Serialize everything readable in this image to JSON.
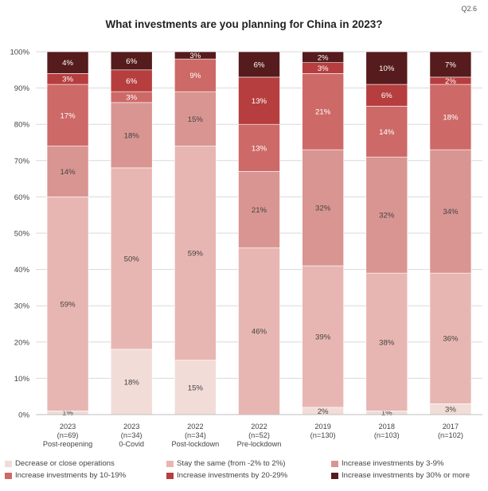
{
  "question_code": "Q2.6",
  "chart_data": {
    "type": "bar",
    "stacked": true,
    "title": "What investments are you planning for China in 2023?",
    "ylim": [
      0,
      100
    ],
    "yticks": [
      "0%",
      "10%",
      "20%",
      "30%",
      "40%",
      "50%",
      "60%",
      "70%",
      "80%",
      "90%",
      "100%"
    ],
    "grid": true,
    "legend_position": "bottom",
    "categories": [
      {
        "line1": "2023",
        "line2": "(n=69)",
        "line3": "Post-reopening"
      },
      {
        "line1": "2023",
        "line2": "(n=34)",
        "line3": "0-Covid"
      },
      {
        "line1": "2022",
        "line2": "(n=34)",
        "line3": "Post-lockdown"
      },
      {
        "line1": "2022",
        "line2": "(n=52)",
        "line3": "Pre-lockdown"
      },
      {
        "line1": "2019",
        "line2": "(n=130)",
        "line3": ""
      },
      {
        "line1": "2018",
        "line2": "(n=103)",
        "line3": ""
      },
      {
        "line1": "2017",
        "line2": "(n=102)",
        "line3": ""
      }
    ],
    "series": [
      {
        "name": "Decrease or close operations",
        "color": "#f2dcd8",
        "values": [
          1,
          18,
          15,
          0,
          2,
          1,
          3
        ],
        "labels": [
          "1%",
          "18%",
          "15%",
          "",
          "2%",
          "1%",
          "3%"
        ]
      },
      {
        "name": "Stay the same (from -2% to 2%)",
        "color": "#e8b6b2",
        "values": [
          59,
          50,
          59,
          46,
          39,
          38,
          36
        ],
        "labels": [
          "59%",
          "50%",
          "59%",
          "46%",
          "39%",
          "38%",
          "36%"
        ]
      },
      {
        "name": "Increase investments by 3-9%",
        "color": "#d99592",
        "values": [
          14,
          18,
          15,
          21,
          32,
          32,
          34
        ],
        "labels": [
          "14%",
          "18%",
          "15%",
          "21%",
          "32%",
          "32%",
          "34%"
        ]
      },
      {
        "name": "Increase investments by 10-19%",
        "color": "#cd6967",
        "values": [
          17,
          3,
          9,
          13,
          21,
          14,
          18
        ],
        "labels": [
          "17%",
          "3%",
          "9%",
          "13%",
          "21%",
          "14%",
          "18%"
        ]
      },
      {
        "name": "Increase investments by 20-29%",
        "color": "#b63e3f",
        "values": [
          3,
          6,
          0,
          13,
          3,
          6,
          2
        ],
        "labels": [
          "3%",
          "6%",
          "",
          "13%",
          "3%",
          "6%",
          "2%"
        ]
      },
      {
        "name": "Increase investments by 30% or more",
        "color": "#561b1c",
        "values": [
          4,
          6,
          3,
          6,
          2,
          10,
          7
        ],
        "labels": [
          "4%",
          "6%",
          "3%",
          "6%",
          "2%",
          "10%",
          "7%"
        ]
      }
    ]
  }
}
